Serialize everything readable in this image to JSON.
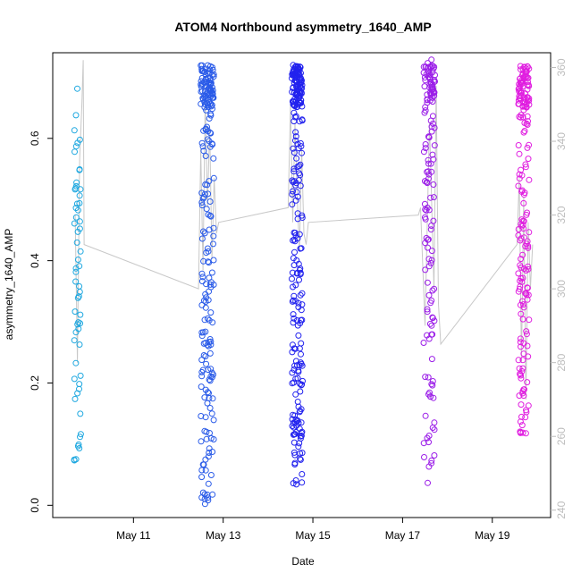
{
  "chart_data": {
    "type": "scatter",
    "title": "ATOM4 Northbound asymmetry_1640_AMP",
    "xlabel": "Date",
    "ylabel": "asymmetry_1640_AMP",
    "x_ticks": [
      "May 11",
      "May 13",
      "May 15",
      "May 17",
      "May 19"
    ],
    "x_tick_values": [
      11,
      13,
      15,
      17,
      19
    ],
    "xlim": [
      9.2,
      20.3
    ],
    "ylim": [
      -0.02,
      0.74
    ],
    "y_ticks": [
      0.0,
      0.2,
      0.4,
      0.6
    ],
    "y_tick_labels": [
      "0.0",
      "0.2",
      "0.4",
      "0.6"
    ],
    "y2lim": [
      238,
      364
    ],
    "y2_ticks": [
      240,
      260,
      280,
      300,
      320,
      340,
      360
    ],
    "y2_tick_labels": [
      "240",
      "260",
      "280",
      "300",
      "320",
      "340",
      "360"
    ],
    "grid": false,
    "legend": "none",
    "colors": {
      "axis": "#000000",
      "right_axis": "#bdbdbd",
      "line": "#c8c8c8"
    },
    "clusters": [
      {
        "center": 9.75,
        "spread": 0.08,
        "n": 60,
        "color": "#1fa8e0",
        "y_min": 0.05,
        "y_max": 0.7,
        "seed": 11
      },
      {
        "center": 12.65,
        "spread": 0.15,
        "n": 230,
        "color": "#2a5be8",
        "y_min": 0.0,
        "y_max": 0.72,
        "seed": 23
      },
      {
        "center": 14.65,
        "spread": 0.12,
        "n": 260,
        "color": "#2222ee",
        "y_min": 0.03,
        "y_max": 0.72,
        "seed": 37
      },
      {
        "center": 17.6,
        "spread": 0.13,
        "n": 150,
        "color": "#9b1ee8",
        "y_min": 0.02,
        "y_max": 0.73,
        "seed": 41
      },
      {
        "center": 19.7,
        "spread": 0.12,
        "n": 190,
        "color": "#e01ee0",
        "y_min": 0.11,
        "y_max": 0.72,
        "seed": 53
      }
    ],
    "line_series": {
      "name": "",
      "axis": "right",
      "x": [
        9.7,
        9.75,
        9.8,
        9.85,
        9.88,
        9.9,
        12.45,
        12.5,
        12.55,
        12.6,
        12.65,
        12.7,
        12.75,
        12.8,
        12.85,
        12.9,
        14.45,
        14.5,
        14.55,
        14.6,
        14.65,
        14.7,
        14.75,
        14.8,
        14.85,
        14.9,
        17.35,
        17.4,
        17.5,
        17.6,
        17.7,
        17.75,
        17.8,
        17.85,
        19.55,
        19.6,
        19.65,
        19.7,
        19.75,
        19.8,
        19.85,
        19.9
      ],
      "y": [
        320,
        280,
        335,
        350,
        362,
        312,
        300,
        338,
        305,
        352,
        322,
        344,
        308,
        330,
        315,
        318,
        322,
        350,
        318,
        345,
        325,
        310,
        338,
        315,
        312,
        318,
        320,
        322,
        290,
        345,
        300,
        355,
        296,
        285,
        312,
        330,
        280,
        325,
        270,
        318,
        300,
        312
      ]
    }
  }
}
